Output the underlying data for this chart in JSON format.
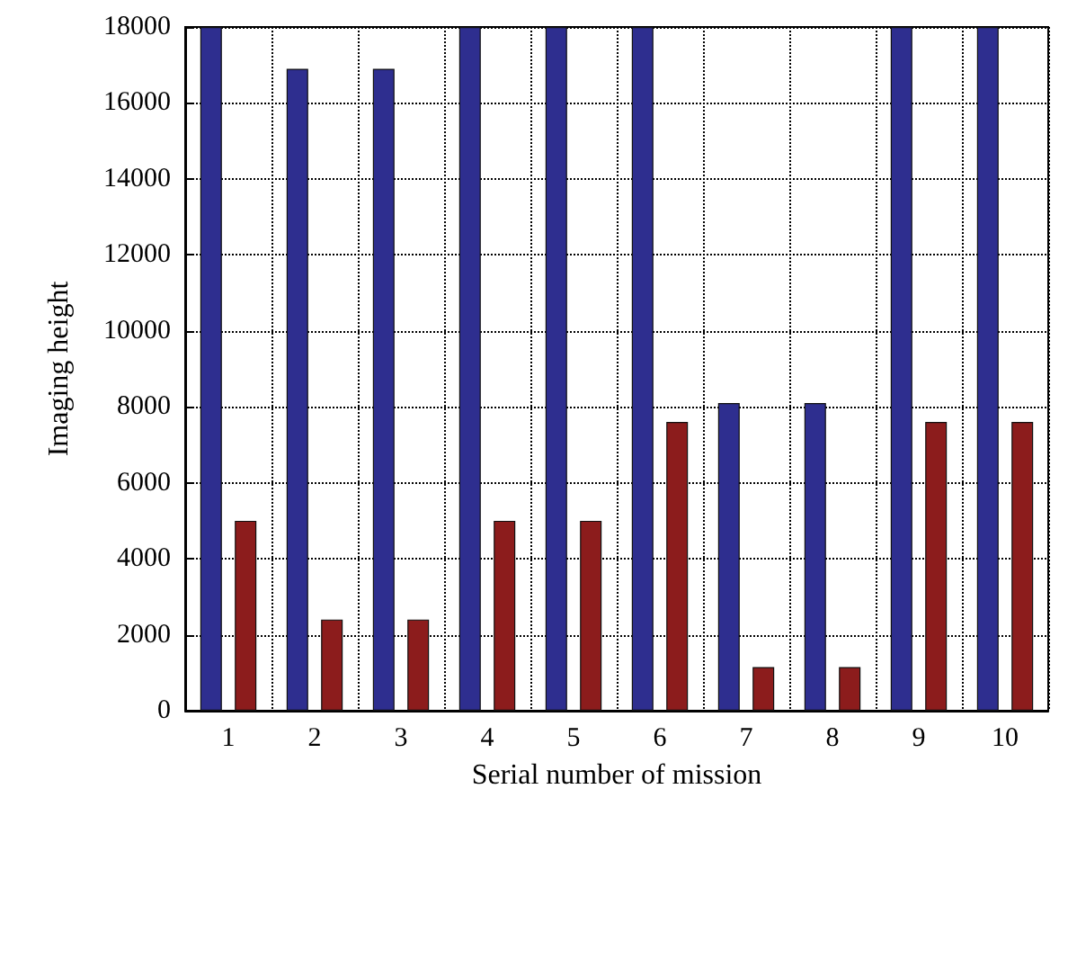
{
  "chart_data": {
    "type": "bar",
    "xlabel": "Serial number of mission",
    "ylabel": "Imaging height",
    "categories": [
      "1",
      "2",
      "3",
      "4",
      "5",
      "6",
      "7",
      "8",
      "9",
      "10"
    ],
    "series": [
      {
        "color": "#2e2e8f",
        "values": [
          18000,
          16900,
          16900,
          18000,
          18000,
          18000,
          8100,
          8100,
          18000,
          18000
        ]
      },
      {
        "color": "#8c1c1c",
        "values": [
          5000,
          2400,
          2400,
          5000,
          5000,
          7600,
          1150,
          1150,
          7600,
          7600
        ]
      }
    ],
    "ylim": [
      0,
      18000
    ],
    "yticks": [
      0,
      2000,
      4000,
      6000,
      8000,
      10000,
      12000,
      14000,
      16000,
      18000
    ],
    "grid": true
  }
}
